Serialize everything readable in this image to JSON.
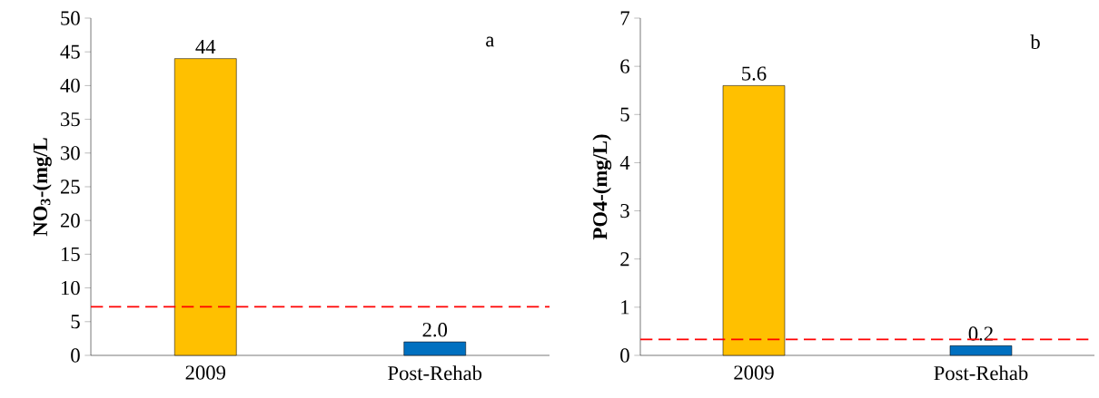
{
  "chart_data": [
    {
      "type": "bar",
      "categories": [
        "2009",
        "Post-Rehab"
      ],
      "values": [
        44,
        2.0
      ],
      "colors": [
        "#ffc000",
        "#0070c0"
      ],
      "value_labels": [
        "44",
        "2.0"
      ],
      "ylabel": "NO$_{3}$-(mg/L",
      "ylim": [
        0,
        50
      ],
      "yticks": [
        0,
        5,
        10,
        15,
        20,
        25,
        30,
        35,
        40,
        45,
        50
      ],
      "ref_lines": [
        {
          "axis": "y",
          "value": 7.2,
          "color": "#ff0000",
          "line_style": "dashed"
        }
      ],
      "annotations": [
        "a"
      ]
    },
    {
      "type": "bar",
      "categories": [
        "2009",
        "Post-Rehab"
      ],
      "values": [
        5.6,
        0.2
      ],
      "colors": [
        "#ffc000",
        "#0070c0"
      ],
      "value_labels": [
        "5.6",
        "0.2"
      ],
      "ylabel": "PO4-(mg/L)",
      "ylim": [
        0,
        7
      ],
      "yticks": [
        0,
        1,
        2,
        3,
        4,
        5,
        6,
        7
      ],
      "ref_lines": [
        {
          "axis": "y",
          "value": 0.33,
          "color": "#ff0000",
          "line_style": "dashed"
        }
      ],
      "annotations": [
        "b"
      ]
    }
  ]
}
